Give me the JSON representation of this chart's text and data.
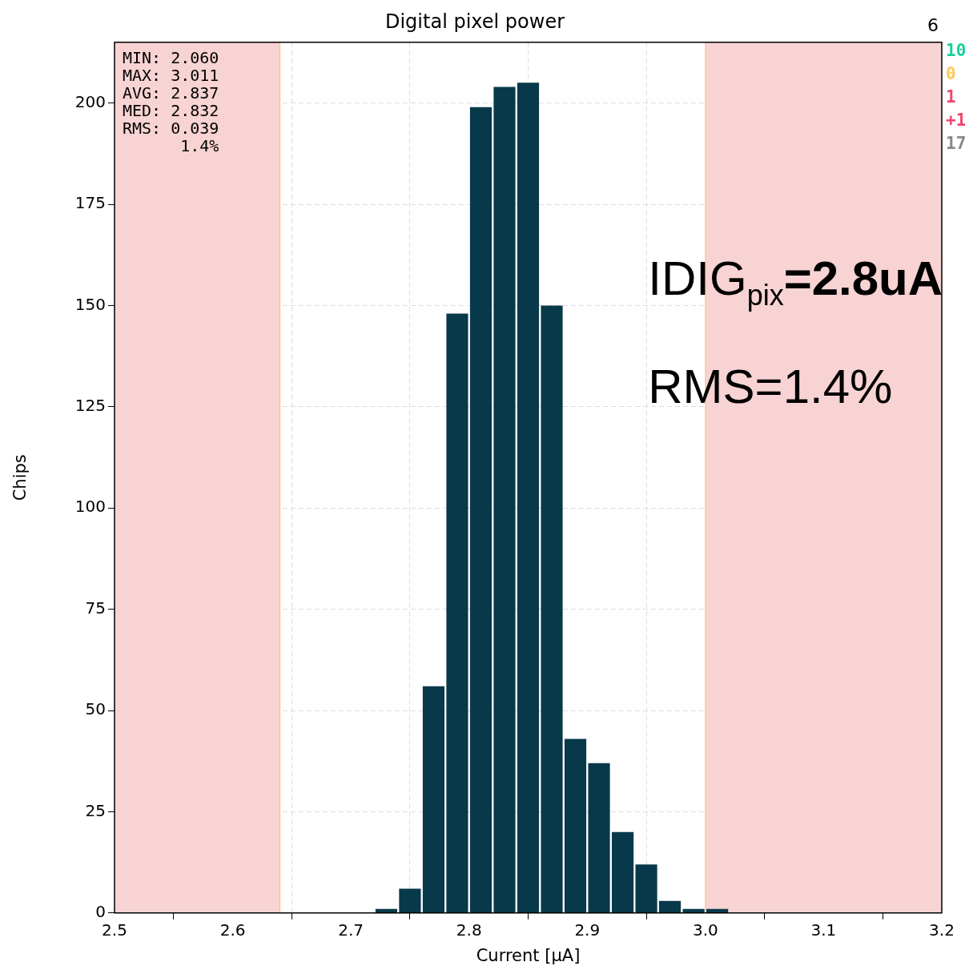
{
  "chart_data": {
    "type": "histogram",
    "title": "Digital pixel power",
    "xlabel": "Current [μA]",
    "ylabel": "Chips",
    "bins": [
      2.72,
      2.74,
      2.76,
      2.78,
      2.8,
      2.82,
      2.84,
      2.86,
      2.88,
      2.9,
      2.92,
      2.94,
      2.96,
      2.98,
      3.0,
      3.02
    ],
    "values": [
      1,
      6,
      56,
      148,
      199,
      204,
      205,
      150,
      43,
      37,
      20,
      12,
      3,
      1,
      1
    ],
    "color": "#08394a",
    "xlim": [
      2.5,
      3.2
    ],
    "xticks": [
      {
        "value": 2.5,
        "label": "2.5"
      },
      {
        "value": 2.6,
        "label": "2.6"
      },
      {
        "value": 2.7,
        "label": "2.7"
      },
      {
        "value": 2.8,
        "label": "2.8"
      },
      {
        "value": 2.9,
        "label": "2.9"
      },
      {
        "value": 3.0,
        "label": "3.0"
      },
      {
        "value": 3.1,
        "label": "3.1"
      },
      {
        "value": 3.2,
        "label": "3.2"
      }
    ],
    "ylim": [
      0,
      215
    ],
    "yticks": [
      0,
      25,
      50,
      75,
      100,
      125,
      150,
      175,
      200
    ],
    "grid": true,
    "bands": [
      {
        "axis": "x",
        "from": 2.5,
        "to": 2.64,
        "color": "#f8d3d3"
      },
      {
        "axis": "x",
        "from": 3.0,
        "to": 3.2,
        "color": "#f8d3d3"
      }
    ],
    "ref_lines": [
      {
        "axis": "x",
        "value": 2.64,
        "color": "#f7c07a"
      },
      {
        "axis": "x",
        "value": 3.0,
        "color": "#f7c07a"
      }
    ],
    "annotations": [
      "MIN: 2.060\nMAX: 3.011\nAVG: 2.837\nMED: 2.832\nRMS: 0.039\n      1.4%",
      "IDIG$_{pix}$=2.8uA",
      "RMS=1.4%",
      "6",
      "10",
      "0",
      "1",
      "+1",
      "17"
    ]
  }
}
